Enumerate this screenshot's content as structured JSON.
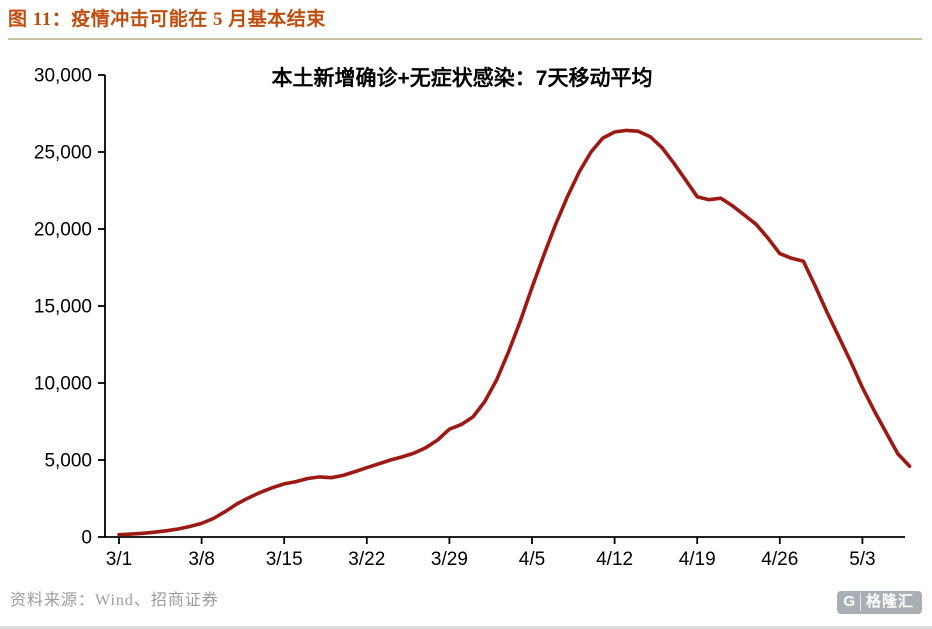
{
  "header": {
    "title": "图 11：疫情冲击可能在 5 月基本结束"
  },
  "chart_data": {
    "type": "line",
    "title": "本土新增确诊+无症状感染：7天移动平均",
    "x_tick_labels": [
      "3/1",
      "3/8",
      "3/15",
      "3/22",
      "3/29",
      "4/5",
      "4/12",
      "4/19",
      "4/26",
      "5/3"
    ],
    "x_tick_indices": [
      0,
      7,
      14,
      21,
      28,
      35,
      42,
      49,
      56,
      63
    ],
    "y_ticks": [
      0,
      5000,
      10000,
      15000,
      20000,
      25000,
      30000
    ],
    "y_tick_labels": [
      "0",
      "5,000",
      "10,000",
      "15,000",
      "20,000",
      "25,000",
      "30,000"
    ],
    "ylim": [
      0,
      30000
    ],
    "grid": false,
    "legend": "none",
    "line_color": "#9C1A13",
    "values": [
      150,
      190,
      240,
      310,
      400,
      520,
      680,
      880,
      1200,
      1650,
      2150,
      2550,
      2900,
      3200,
      3450,
      3600,
      3800,
      3900,
      3850,
      4000,
      4250,
      4500,
      4750,
      5000,
      5200,
      5450,
      5800,
      6300,
      7000,
      7300,
      7800,
      8800,
      10200,
      12000,
      14000,
      16200,
      18300,
      20300,
      22100,
      23700,
      25000,
      25900,
      26300,
      26400,
      26350,
      26000,
      25300,
      24300,
      23200,
      22100,
      21900,
      22000,
      21500,
      20900,
      20300,
      19400,
      18400,
      18100,
      17900,
      16300,
      14600,
      13000,
      11400,
      9700,
      8200,
      6800,
      5400,
      4600
    ]
  },
  "footer": {
    "source": "资料来源：Wind、招商证券",
    "logo_initial": "G",
    "logo_text": "格隆汇"
  },
  "colors": {
    "title": "#BD4E0E",
    "divider": "#C8BF9C",
    "axis": "#000000",
    "source_text": "#9B9B9B"
  }
}
